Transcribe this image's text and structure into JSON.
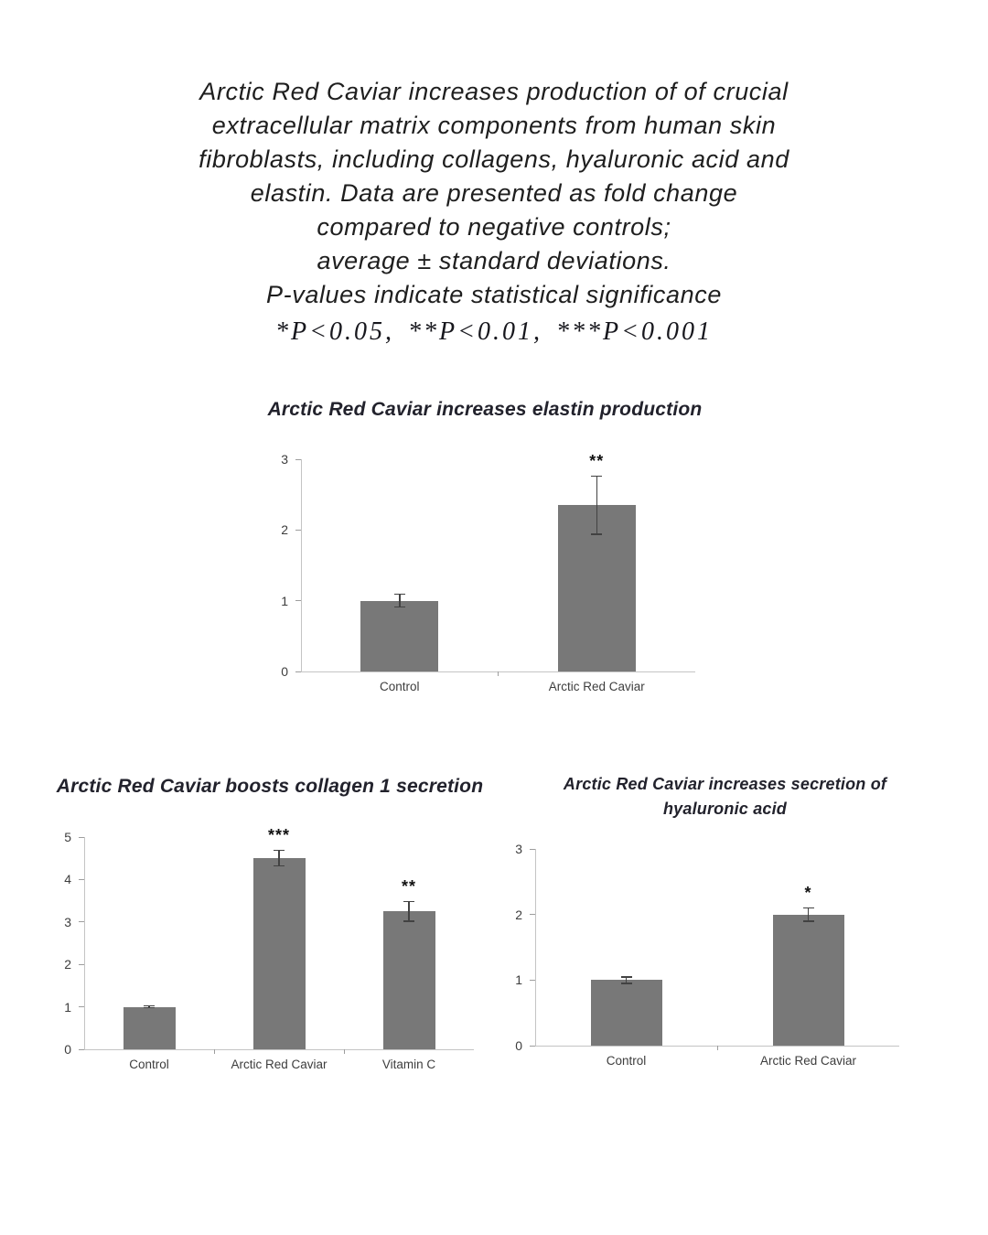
{
  "header": {
    "lines": [
      "Arctic Red Caviar increases production of of crucial",
      "extracellular matrix components from human skin",
      "fibroblasts, including collagens, hyaluronic acid and",
      "elastin. Data are presented as fold change",
      "compared to negative controls;",
      "average ± standard deviations.",
      "P-values indicate statistical significance"
    ],
    "pvalue_line": "*P<0.05, **P<0.01, ***P<0.001"
  },
  "chart_data": [
    {
      "id": "elastin",
      "type": "bar",
      "title": "Arctic Red Caviar increases elastin production",
      "title_lines": [
        "Arctic Red Caviar increases elastin production"
      ],
      "categories": [
        "Control",
        "Arctic Red Caviar"
      ],
      "values": [
        1.0,
        2.35
      ],
      "errors": [
        0.1,
        0.42
      ],
      "significance": [
        "",
        "**"
      ],
      "ylim": [
        0,
        3
      ],
      "yticks": [
        0,
        1,
        2,
        3
      ],
      "xlabel": "",
      "ylabel": "",
      "grid": false,
      "legend": "none"
    },
    {
      "id": "collagen-1",
      "type": "bar",
      "title": "Arctic Red Caviar boosts collagen 1 secretion",
      "title_lines": [
        "Arctic Red Caviar boosts collagen 1 secretion"
      ],
      "categories": [
        "Control",
        "Arctic Red Caviar",
        "Vitamin C"
      ],
      "values": [
        1.0,
        4.5,
        3.25
      ],
      "errors": [
        0.04,
        0.2,
        0.25
      ],
      "significance": [
        "",
        "***",
        "**"
      ],
      "ylim": [
        0,
        5
      ],
      "yticks": [
        0,
        1,
        2,
        3,
        4,
        5
      ],
      "xlabel": "",
      "ylabel": "",
      "grid": false,
      "legend": "none"
    },
    {
      "id": "hyaluronic-acid",
      "type": "bar",
      "title": "Arctic Red Caviar increases  secretion of hyaluronic acid",
      "title_lines": [
        "Arctic Red Caviar increases  secretion of",
        "hyaluronic acid"
      ],
      "categories": [
        "Control",
        "Arctic Red Caviar"
      ],
      "values": [
        1.0,
        2.0
      ],
      "errors": [
        0.06,
        0.11
      ],
      "significance": [
        "",
        "*"
      ],
      "ylim": [
        0,
        3
      ],
      "yticks": [
        0,
        1,
        2,
        3
      ],
      "xlabel": "",
      "ylabel": "",
      "grid": false,
      "legend": "none"
    }
  ],
  "colors": {
    "bar": "#787878",
    "axis_line": "#c4c4c4",
    "tick_mark": "#9d9d9d",
    "tick_label": "#3d3d3d",
    "category_label": "#3d3d3d",
    "error_bar": "#424242",
    "chart_title": "#22222c",
    "header_text": "#1e1e1e",
    "significance": "#111111",
    "background": "#ffffff"
  }
}
